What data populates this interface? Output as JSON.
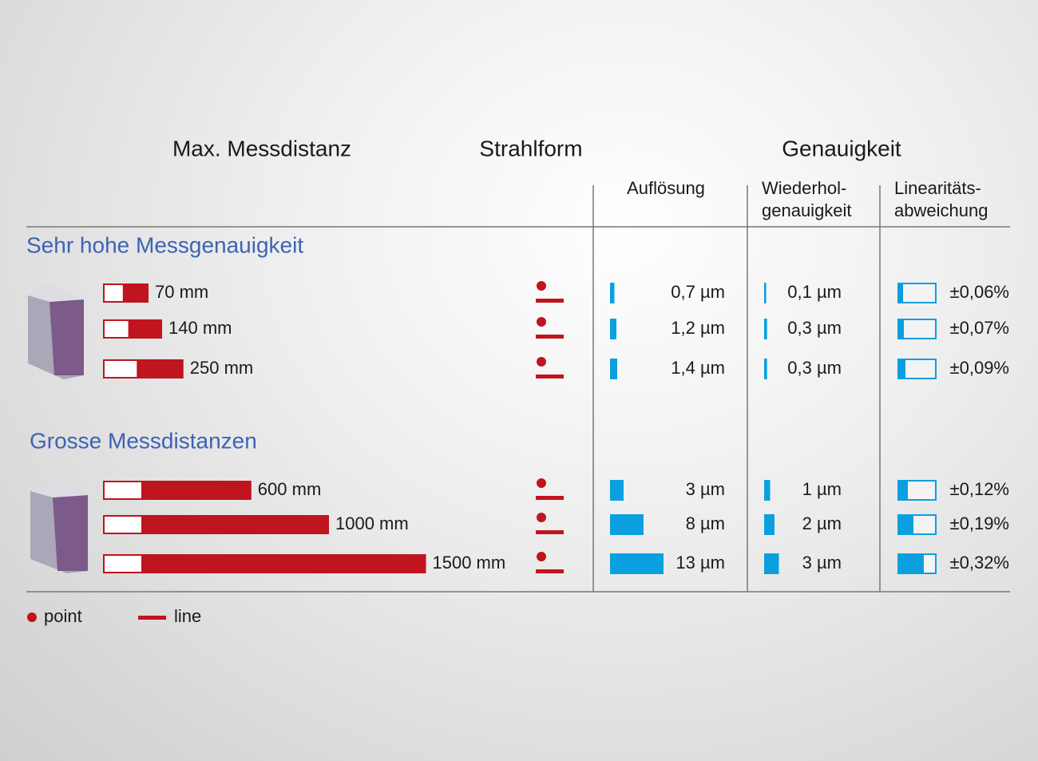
{
  "headers": {
    "distance": "Max. Messdistanz",
    "beam": "Strahlform",
    "accuracy": "Genauigkeit",
    "resolution": "Auflösung",
    "repeatability": [
      "Wiederhol-",
      "genauigkeit"
    ],
    "linearity": [
      "Linearitäts-",
      "abweichung"
    ]
  },
  "groups": [
    {
      "title": "Sehr hohe Messgenauigkeit",
      "rows": [
        {
          "distance": 70,
          "distance_label": "70 mm",
          "resolution": 0.7,
          "resolution_label": "0,7 µm",
          "repeatability": 0.1,
          "repeatability_label": "0,1 µm",
          "linearity": 0.06,
          "linearity_label": "±0,06%"
        },
        {
          "distance": 140,
          "distance_label": "140 mm",
          "resolution": 1.2,
          "resolution_label": "1,2 µm",
          "repeatability": 0.3,
          "repeatability_label": "0,3 µm",
          "linearity": 0.07,
          "linearity_label": "±0,07%"
        },
        {
          "distance": 250,
          "distance_label": "250 mm",
          "resolution": 1.4,
          "resolution_label": "1,4 µm",
          "repeatability": 0.3,
          "repeatability_label": "0,3 µm",
          "linearity": 0.09,
          "linearity_label": "±0,09%"
        }
      ]
    },
    {
      "title": "Grosse Messdistanzen",
      "rows": [
        {
          "distance": 600,
          "distance_label": "600 mm",
          "resolution": 3,
          "resolution_label": "3 µm",
          "repeatability": 1,
          "repeatability_label": "1 µm",
          "linearity": 0.12,
          "linearity_label": "±0,12%"
        },
        {
          "distance": 1000,
          "distance_label": "1000 mm",
          "resolution": 8,
          "resolution_label": "8 µm",
          "repeatability": 2,
          "repeatability_label": "2 µm",
          "linearity": 0.19,
          "linearity_label": "±0,19%"
        },
        {
          "distance": 1500,
          "distance_label": "1500 mm",
          "resolution": 13,
          "resolution_label": "13 µm",
          "repeatability": 3,
          "repeatability_label": "3 µm",
          "linearity": 0.32,
          "linearity_label": "±0,32%"
        }
      ]
    }
  ],
  "legend": {
    "point": "point",
    "line": "line"
  }
}
